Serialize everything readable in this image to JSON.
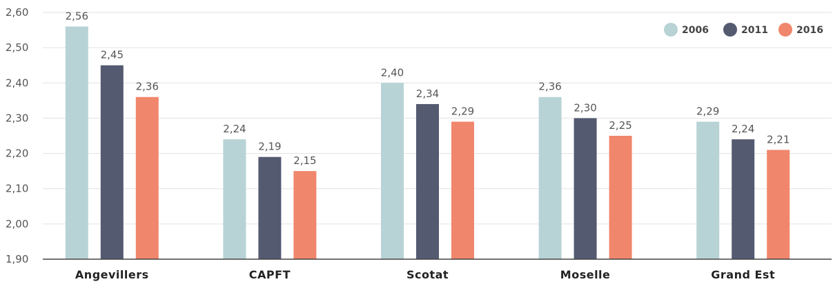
{
  "chart_data": {
    "type": "bar",
    "categories": [
      "Angevillers",
      "CAPFT",
      "Scotat",
      "Moselle",
      "Grand Est"
    ],
    "series": [
      {
        "name": "2006",
        "color": "#b8d3d6",
        "values": [
          2.56,
          2.24,
          2.4,
          2.36,
          2.29
        ],
        "labels": [
          "2,56",
          "2,24",
          "2,40",
          "2,36",
          "2,29"
        ]
      },
      {
        "name": "2011",
        "color": "#545a70",
        "values": [
          2.45,
          2.19,
          2.34,
          2.3,
          2.24
        ],
        "labels": [
          "2,45",
          "2,19",
          "2,34",
          "2,30",
          "2,24"
        ]
      },
      {
        "name": "2016",
        "color": "#f0866c",
        "values": [
          2.36,
          2.15,
          2.29,
          2.25,
          2.21
        ],
        "labels": [
          "2,36",
          "2,15",
          "2,29",
          "2,25",
          "2,21"
        ]
      }
    ],
    "yticks": [
      1.9,
      2.0,
      2.1,
      2.2,
      2.3,
      2.4,
      2.5,
      2.6
    ],
    "ytick_labels": [
      "1,90",
      "2,00",
      "2,10",
      "2,20",
      "2,30",
      "2,40",
      "2,50",
      "2,60"
    ],
    "ylim": [
      1.9,
      2.6
    ],
    "title": "",
    "xlabel": "",
    "ylabel": "",
    "grid": true,
    "legend_position": "top-right"
  }
}
